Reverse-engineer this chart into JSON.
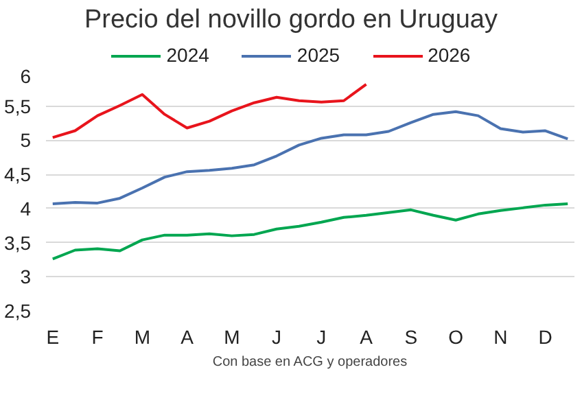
{
  "chart_data": {
    "type": "line",
    "title": "Precio del novillo gordo en Uruguay",
    "categories": [
      "E",
      null,
      "F",
      null,
      "M",
      null,
      "A",
      null,
      "M",
      null,
      "J",
      null,
      "J",
      null,
      "A",
      null,
      "S",
      null,
      "O",
      null,
      "N",
      null,
      "D",
      null
    ],
    "series": [
      {
        "name": "2024",
        "color": "#00a650",
        "values": [
          3.26,
          3.39,
          3.41,
          3.38,
          3.54,
          3.61,
          3.61,
          3.63,
          3.6,
          3.62,
          3.7,
          3.74,
          3.8,
          3.87,
          3.9,
          3.94,
          3.98,
          3.9,
          3.83,
          3.92,
          3.97,
          4.01,
          4.05,
          4.07
        ]
      },
      {
        "name": "2025",
        "color": "#4a72b0",
        "values": [
          4.07,
          4.09,
          4.08,
          4.15,
          4.3,
          4.46,
          4.54,
          4.56,
          4.59,
          4.64,
          4.77,
          4.93,
          5.03,
          5.08,
          5.08,
          5.13,
          5.26,
          5.38,
          5.42,
          5.36,
          5.17,
          5.12,
          5.14,
          5.02
        ]
      },
      {
        "name": "2026",
        "color": "#e8141c",
        "values": [
          5.04,
          5.14,
          5.36,
          5.51,
          5.67,
          5.38,
          5.18,
          5.28,
          5.43,
          5.55,
          5.63,
          5.58,
          5.56,
          5.58,
          5.82,
          null,
          null,
          null,
          null,
          null,
          null,
          null,
          null,
          null
        ]
      }
    ],
    "ylim": [
      2.5,
      6
    ],
    "yticks": [
      {
        "value": 2.5,
        "label": "2,5"
      },
      3,
      {
        "value": 3.5,
        "label": "3,5"
      },
      4,
      {
        "value": 4.5,
        "label": "4,5"
      },
      5,
      {
        "value": 5.5,
        "label": "5,5"
      },
      6
    ],
    "grid": "y",
    "legend": "top",
    "marker": "none",
    "line_style": "solid",
    "annotations": [
      "Con base en ACG y operadores"
    ]
  }
}
